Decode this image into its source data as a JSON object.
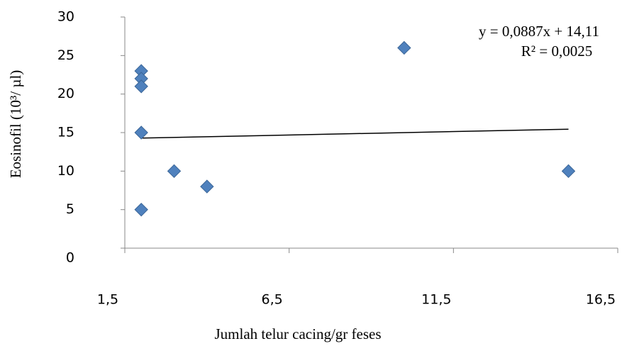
{
  "chart_data": {
    "type": "scatter",
    "x_label": "Jumlah telur cacing/gr feses",
    "y_label": "Eosinofil (10³/ µl)",
    "series": [
      {
        "color": "#4f81bd",
        "x": [
          2,
          2,
          2,
          2,
          2,
          3,
          4,
          10,
          15
        ],
        "values": [
          23,
          22,
          21,
          15,
          5,
          10,
          8,
          26,
          10
        ]
      }
    ],
    "trendline": {
      "slope": 0.0887,
      "intercept": 14.11,
      "color": "#000000",
      "equation": "y  =  0,0887x  +  14,11",
      "r2_label": "R² = 0,0025"
    },
    "xlim": [
      1.5,
      16.5
    ],
    "xticks": [
      {
        "value": 1.5,
        "label": "1,5"
      },
      {
        "value": 6.5,
        "label": "6,5"
      },
      {
        "value": 11.5,
        "label": "11,5"
      },
      {
        "value": 16.5,
        "label": "16,5"
      }
    ],
    "ylim": [
      0,
      30
    ],
    "yticks": [
      0,
      5,
      10,
      15,
      20,
      25,
      30
    ]
  }
}
